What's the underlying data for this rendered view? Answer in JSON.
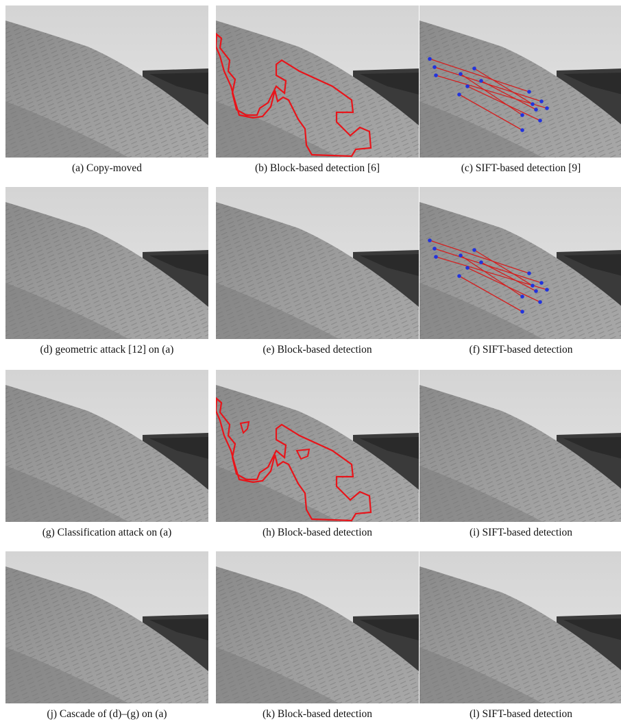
{
  "figure": {
    "captions": [
      "(a) Copy-moved",
      "(b) Block-based detection [6]",
      "(c) SIFT-based detection [9]",
      "(d) geometric attack [12] on (a)",
      "(e) Block-based detection",
      "(f) SIFT-based detection",
      "(g) Classification attack on (a)",
      "(h) Block-based detection",
      "(i) SIFT-based detection",
      "(j) Cascade of (d)–(g) on (a)",
      "(k) Block-based detection",
      "(l) SIFT-based detection"
    ]
  }
}
